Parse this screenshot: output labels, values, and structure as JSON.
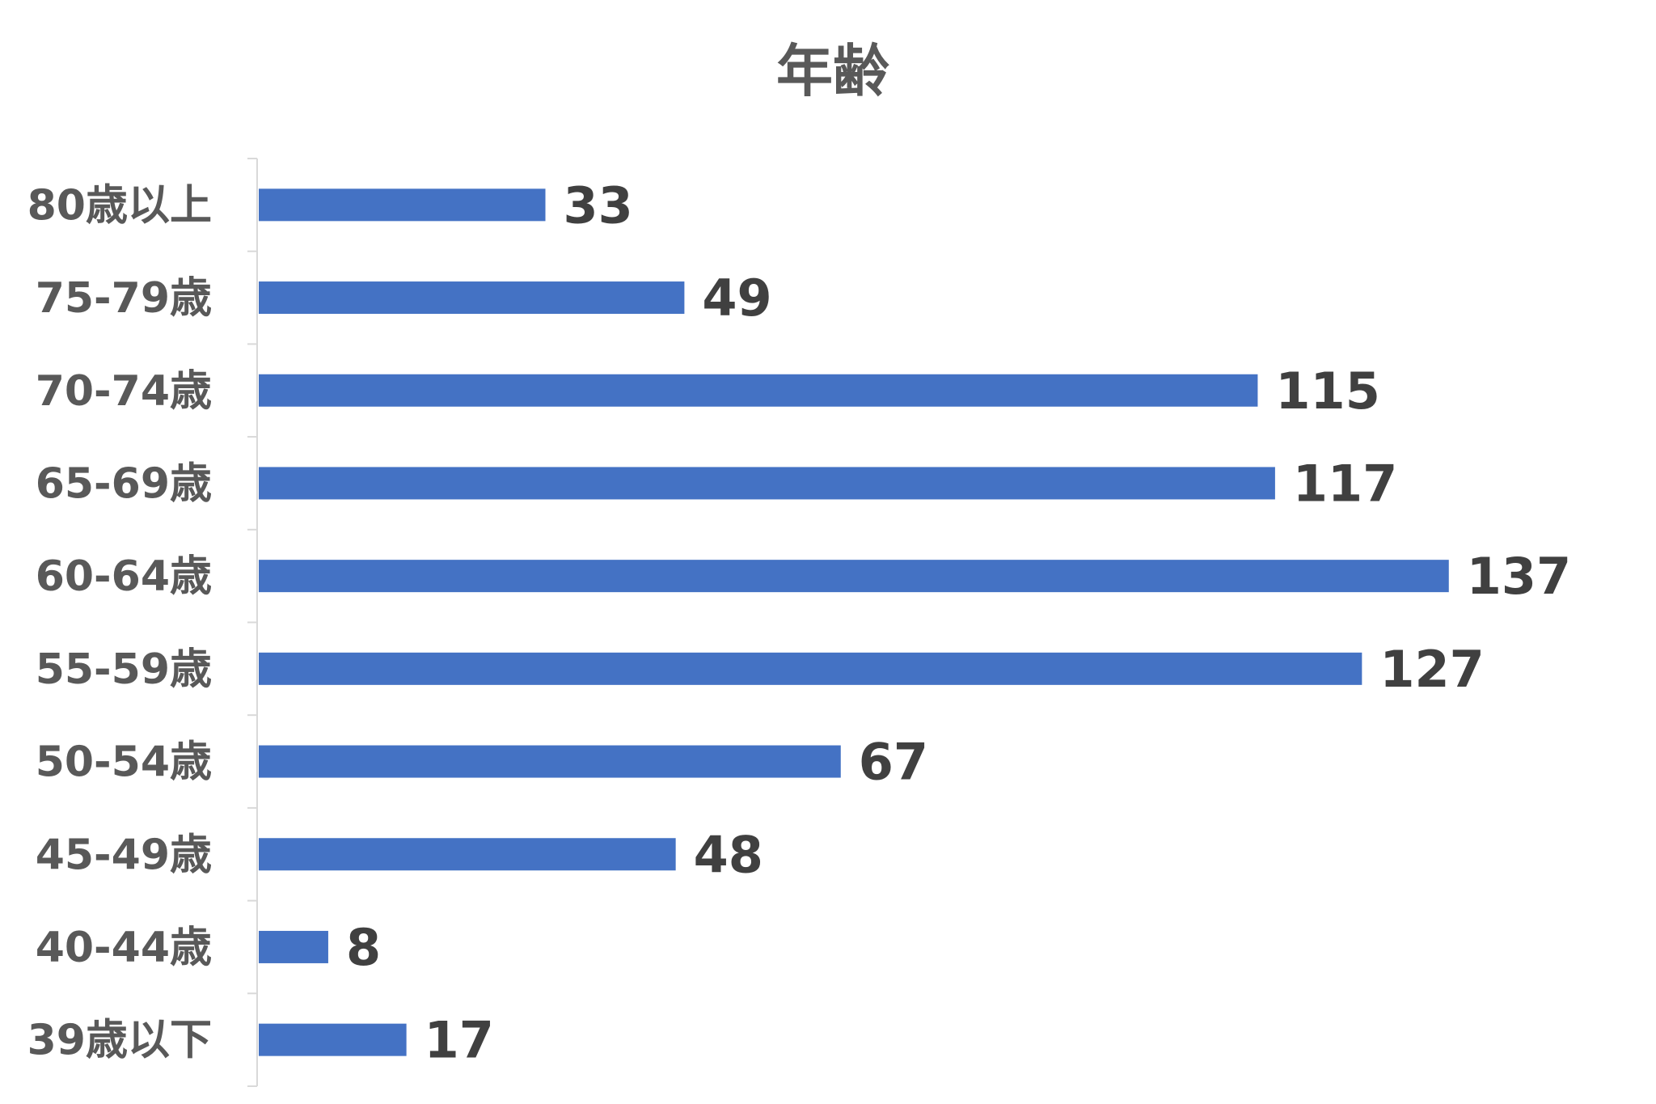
{
  "chart_data": {
    "type": "bar",
    "orientation": "horizontal",
    "title": "年齢",
    "xlabel": "",
    "ylabel": "",
    "categories": [
      "80歳以上",
      "75-79歳",
      "70-74歳",
      "65-69歳",
      "60-64歳",
      "55-59歳",
      "50-54歳",
      "45-49歳",
      "40-44歳",
      "39歳以下"
    ],
    "values": [
      33,
      49,
      115,
      117,
      137,
      127,
      67,
      48,
      8,
      17
    ],
    "xlim": [
      0,
      140
    ],
    "grid": false,
    "legend": "none",
    "data_labels": true,
    "bar_color": "#4472C4"
  }
}
